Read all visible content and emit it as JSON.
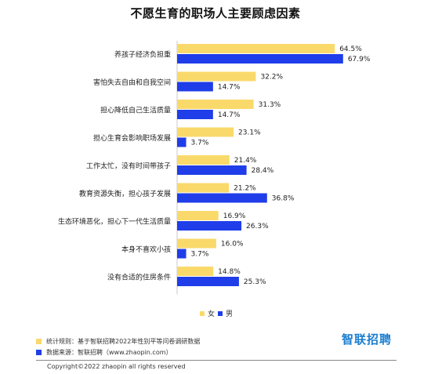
{
  "title": "不愿生育的职场人主要顾虑因素",
  "colors": {
    "female": "#fad96b",
    "male": "#1f3de8"
  },
  "legend": {
    "female": "女",
    "male": "男"
  },
  "notes": [
    {
      "label": "统计规则：基于智联招聘2022年性别平等问卷调研数据",
      "color": "#fad96b"
    },
    {
      "label": "数据来源：智联招聘（www.zhaopin.com）",
      "color": "#1f3de8"
    }
  ],
  "brand": "智联招聘",
  "copyright": "Copyright©2022 zhaopin all rights reserved",
  "chart_data": {
    "type": "bar",
    "orientation": "horizontal",
    "categories": [
      "养孩子经济负担重",
      "害怕失去自由和自我空间",
      "担心降低自己生活质量",
      "担心生育会影响职场发展",
      "工作太忙，没有时间带孩子",
      "教育资源失衡，担心孩子发展",
      "生态环境恶化，担心下一代生活质量",
      "本身不喜欢小孩",
      "没有合适的住房条件"
    ],
    "series": [
      {
        "name": "女",
        "values": [
          64.5,
          32.2,
          31.3,
          23.1,
          21.4,
          21.2,
          16.9,
          16.0,
          14.8
        ],
        "labels": [
          "64.5%",
          "32.2%",
          "31.3%",
          "23.1%",
          "21.4%",
          "21.2%",
          "16.9%",
          "16.0%",
          "14.8%"
        ]
      },
      {
        "name": "男",
        "values": [
          67.9,
          14.7,
          14.7,
          3.7,
          28.4,
          36.8,
          26.3,
          3.7,
          25.3
        ],
        "labels": [
          "67.9%",
          "14.7%",
          "14.7%",
          "3.7%",
          "28.4%",
          "36.8%",
          "26.3%",
          "3.7%",
          "25.3%"
        ]
      }
    ],
    "xlim": [
      0,
      70
    ],
    "grid": false,
    "legend_position": "bottom"
  }
}
